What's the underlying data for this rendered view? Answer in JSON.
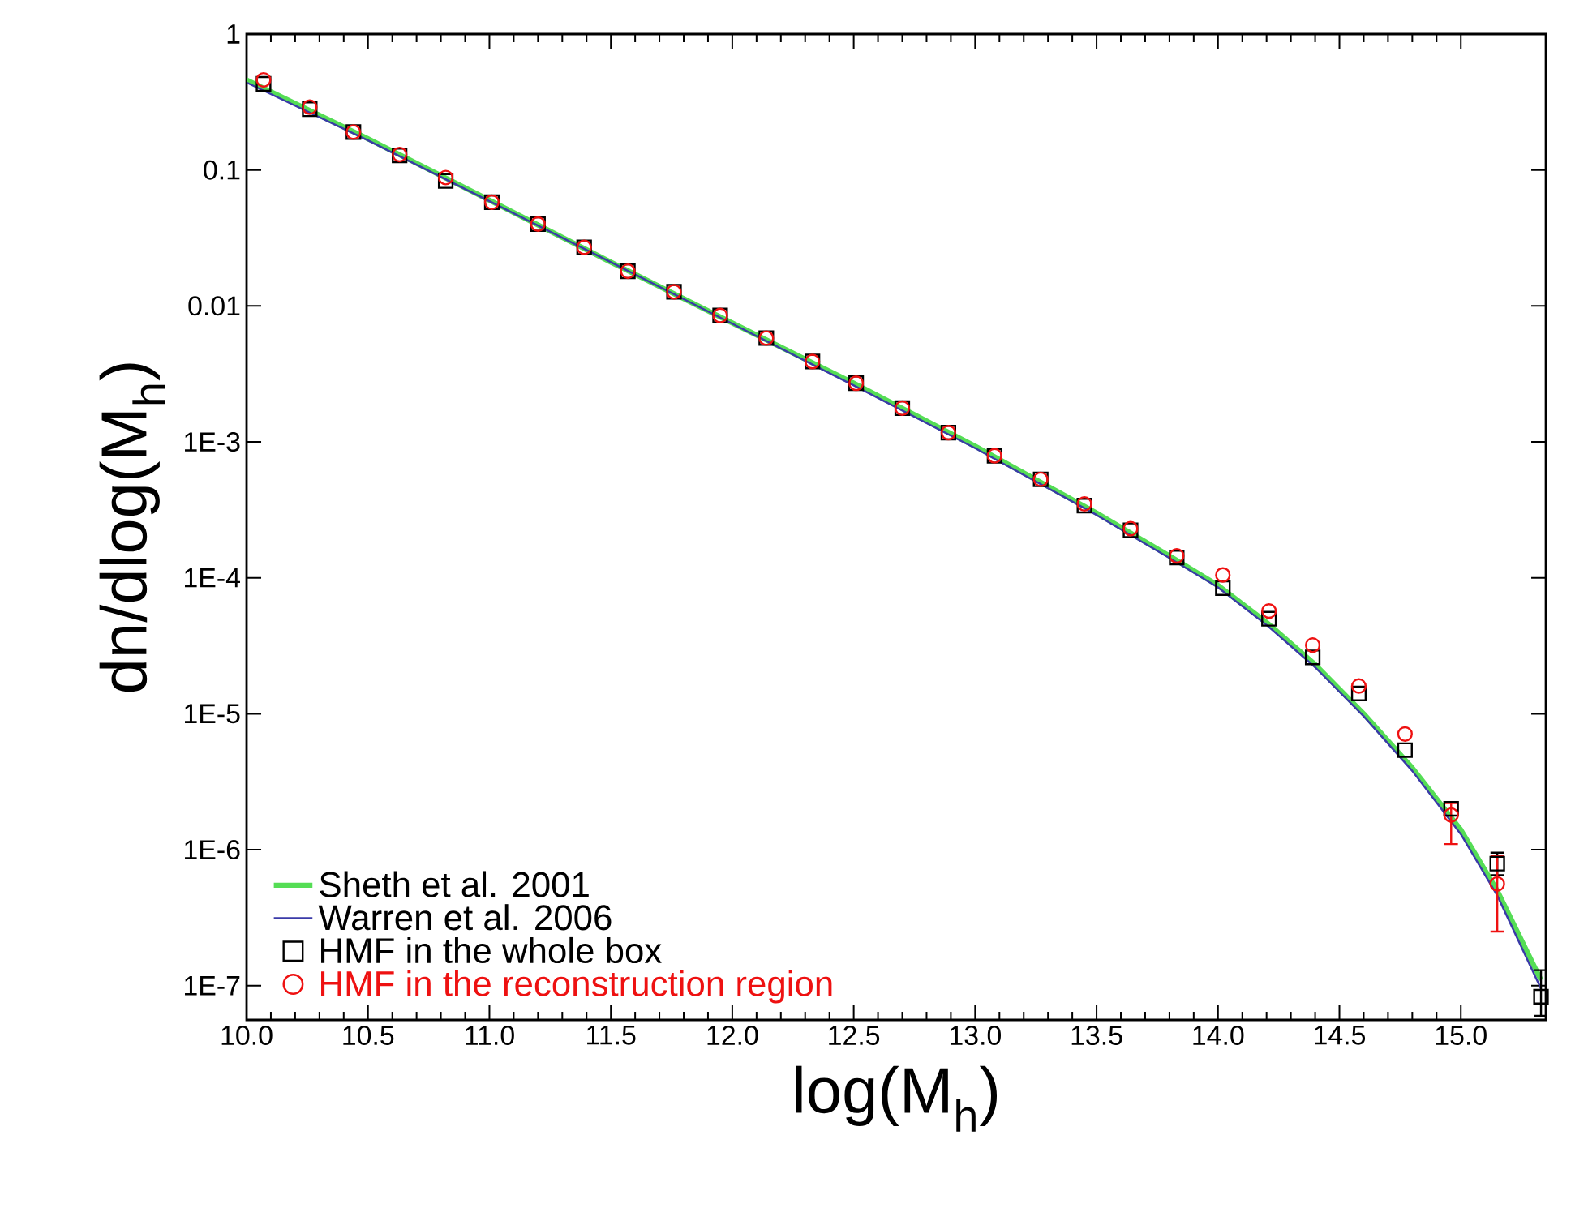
{
  "chart_data": {
    "type": "scatter",
    "xlabel": "log(M$_{h}$)",
    "ylabel": "dn/dlog(M$_{h}$)",
    "log": "y",
    "grid": false,
    "legend": "bottom left",
    "xlim": [
      10.0,
      15.35
    ],
    "ylim": [
      5.6e-08,
      1
    ],
    "xticks": [
      {
        "value": 10.0,
        "label": "10.0"
      },
      10.5,
      {
        "value": 11.0,
        "label": "11.0"
      },
      11.5,
      {
        "value": 12.0,
        "label": "12.0"
      },
      12.5,
      {
        "value": 13.0,
        "label": "13.0"
      },
      13.5,
      {
        "value": 14.0,
        "label": "14.0"
      },
      14.5,
      {
        "value": 15.0,
        "label": "15.0"
      }
    ],
    "yticks": [
      1,
      0.1,
      0.01,
      {
        "value": 0.001,
        "label": "1E-3"
      },
      {
        "value": 0.0001,
        "label": "1E-4"
      },
      {
        "value": 1e-05,
        "label": "1E-5"
      },
      {
        "value": 1e-06,
        "label": "1E-6"
      },
      {
        "value": 1e-07,
        "label": "1E-7"
      }
    ],
    "series": [
      {
        "name": "Sheth et al. 2001",
        "type": "line",
        "color": "#55dd55",
        "line_style": "solid",
        "marker": "none",
        "x": [
          10.0,
          10.5,
          11.0,
          11.5,
          12.0,
          12.5,
          13.0,
          13.5,
          13.8,
          14.0,
          14.2,
          14.4,
          14.6,
          14.8,
          15.0,
          15.15,
          15.33
        ],
        "values": [
          0.46,
          0.17,
          0.06,
          0.021,
          0.0075,
          0.0027,
          0.00093,
          0.0003,
          0.000145,
          8.8e-05,
          4.7e-05,
          2.3e-05,
          1e-05,
          4e-06,
          1.4e-06,
          5e-07,
          1.1e-07
        ]
      },
      {
        "name": "Warren et al. 2006",
        "type": "line",
        "color": "#3a3aa8",
        "line_style": "solid",
        "marker": "none",
        "x": [
          10.0,
          10.5,
          11.0,
          11.5,
          12.0,
          12.5,
          13.0,
          13.5,
          13.8,
          14.0,
          14.2,
          14.4,
          14.6,
          14.8,
          15.0,
          15.15,
          15.33
        ],
        "values": [
          0.44,
          0.165,
          0.059,
          0.021,
          0.0074,
          0.0026,
          0.0009,
          0.00029,
          0.00014,
          8.5e-05,
          4.5e-05,
          2.2e-05,
          9.6e-06,
          3.8e-06,
          1.3e-06,
          4.6e-07,
          9.5e-08
        ]
      },
      {
        "name": "HMF in the whole box",
        "color": "#000000",
        "marker": "square",
        "x": [
          10.07,
          10.26,
          10.44,
          10.63,
          10.82,
          11.01,
          11.2,
          11.39,
          11.57,
          11.76,
          11.95,
          12.14,
          12.33,
          12.51,
          12.7,
          12.89,
          13.08,
          13.27,
          13.45,
          13.64,
          13.83,
          14.02,
          14.21,
          14.39,
          14.58,
          14.77,
          14.96,
          15.15,
          15.33
        ],
        "values": [
          0.43,
          0.28,
          0.19,
          0.128,
          0.083,
          0.058,
          0.04,
          0.027,
          0.018,
          0.0127,
          0.0085,
          0.0058,
          0.0039,
          0.0027,
          0.00177,
          0.00117,
          0.00079,
          0.00053,
          0.00034,
          0.000224,
          0.000141,
          8.4e-05,
          5e-05,
          2.6e-05,
          1.41e-05,
          5.4e-06,
          2e-06,
          7.9e-07,
          8.3e-08
        ],
        "errors": [
          null,
          null,
          null,
          null,
          null,
          null,
          null,
          null,
          null,
          null,
          null,
          null,
          null,
          null,
          null,
          null,
          null,
          null,
          null,
          null,
          null,
          null,
          null,
          null,
          null,
          null,
          null,
          [
            6.5e-07,
            9.5e-07
          ],
          [
            6e-08,
            1.3e-07
          ]
        ]
      },
      {
        "name": "HMF in the reconstruction region",
        "color": "#ee1111",
        "marker": "circle",
        "x": [
          10.07,
          10.26,
          10.44,
          10.63,
          10.82,
          11.01,
          11.2,
          11.39,
          11.57,
          11.76,
          11.95,
          12.14,
          12.33,
          12.51,
          12.7,
          12.89,
          13.08,
          13.27,
          13.45,
          13.64,
          13.83,
          14.02,
          14.21,
          14.39,
          14.58,
          14.77,
          14.96,
          15.15
        ],
        "values": [
          0.46,
          0.29,
          0.19,
          0.13,
          0.088,
          0.058,
          0.04,
          0.027,
          0.018,
          0.0127,
          0.0085,
          0.0058,
          0.0039,
          0.0027,
          0.00177,
          0.00117,
          0.00079,
          0.00053,
          0.00035,
          0.00023,
          0.000145,
          0.000105,
          5.7e-05,
          3.2e-05,
          1.6e-05,
          7.1e-06,
          1.8e-06,
          5.6e-07
        ],
        "errors": [
          null,
          null,
          null,
          null,
          null,
          null,
          null,
          null,
          null,
          null,
          null,
          null,
          null,
          null,
          null,
          null,
          null,
          null,
          null,
          null,
          null,
          null,
          null,
          null,
          null,
          null,
          [
            1.1e-06,
            2.2e-06
          ],
          [
            2.5e-07,
            9e-07
          ]
        ]
      }
    ]
  }
}
